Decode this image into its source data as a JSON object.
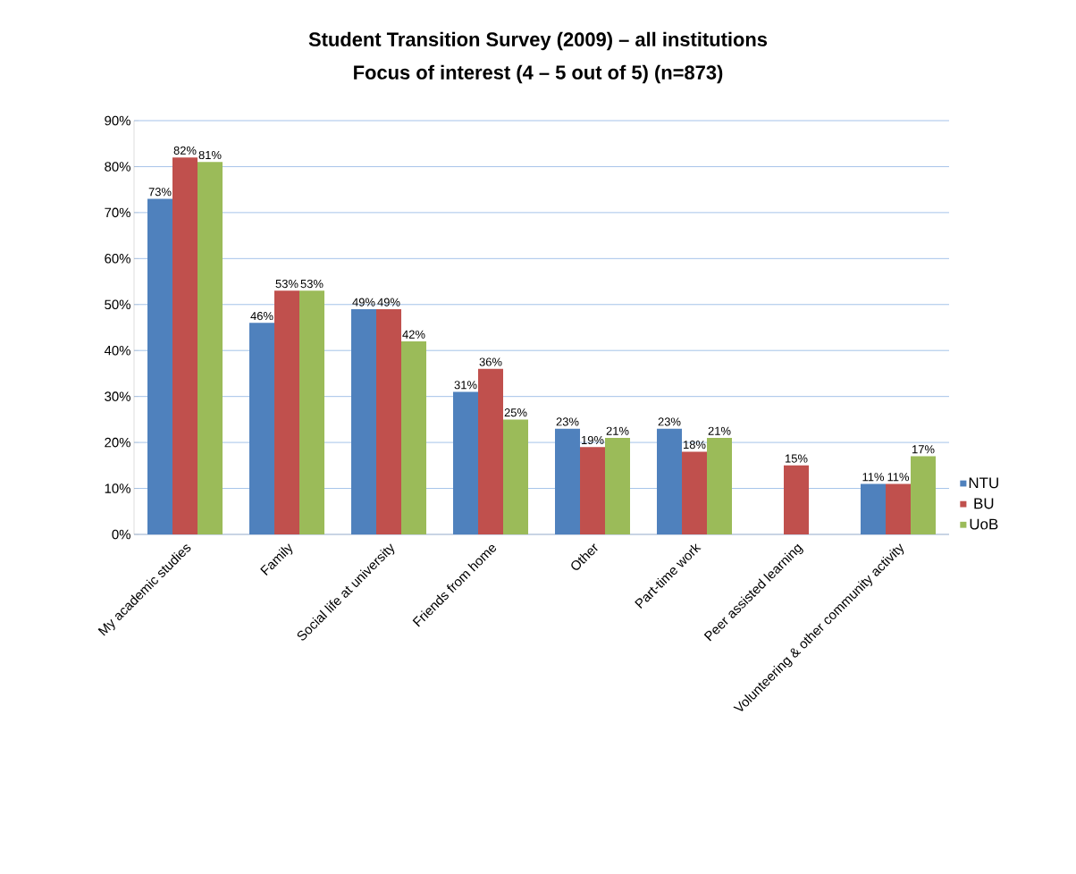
{
  "chart_data": {
    "type": "bar",
    "title": "Student Transition Survey (2009) – all institutions",
    "subtitle": "Focus of interest (4 – 5 out of 5) (n=873)",
    "categories": [
      "My academic studies",
      "Family",
      "Social life at university",
      "Friends from home",
      "Other",
      "Part-time work",
      "Peer assisted learning",
      "Volunteering & other community activity"
    ],
    "series": [
      {
        "name": "NTU",
        "color": "#4f81bd",
        "values": [
          73,
          46,
          49,
          31,
          23,
          23,
          null,
          11
        ],
        "value_labels": [
          "73%",
          "46%",
          "49%",
          "31%",
          "23%",
          "23%",
          null,
          "11%"
        ]
      },
      {
        "name": "BU",
        "color": "#c0504d",
        "values": [
          82,
          53,
          49,
          36,
          19,
          18,
          15,
          11
        ],
        "value_labels": [
          "82%",
          "53%",
          "49%",
          "36%",
          "19%",
          "18%",
          "15%",
          "11%"
        ]
      },
      {
        "name": "UoB",
        "color": "#9bbb59",
        "values": [
          81,
          53,
          42,
          25,
          21,
          21,
          null,
          17
        ],
        "value_labels": [
          "81%",
          "53%",
          "42%",
          "25%",
          "21%",
          "21%",
          null,
          "17%"
        ]
      }
    ],
    "ylim": [
      0,
      90
    ],
    "yticks": [
      {
        "value": 0,
        "label": "0%"
      },
      {
        "value": 10,
        "label": "10%"
      },
      {
        "value": 20,
        "label": "20%"
      },
      {
        "value": 30,
        "label": "30%"
      },
      {
        "value": 40,
        "label": "40%"
      },
      {
        "value": 50,
        "label": "50%"
      },
      {
        "value": 60,
        "label": "60%"
      },
      {
        "value": 70,
        "label": "70%"
      },
      {
        "value": 80,
        "label": "80%"
      },
      {
        "value": 90,
        "label": "90%"
      }
    ],
    "grid": "y",
    "legend": "right"
  }
}
